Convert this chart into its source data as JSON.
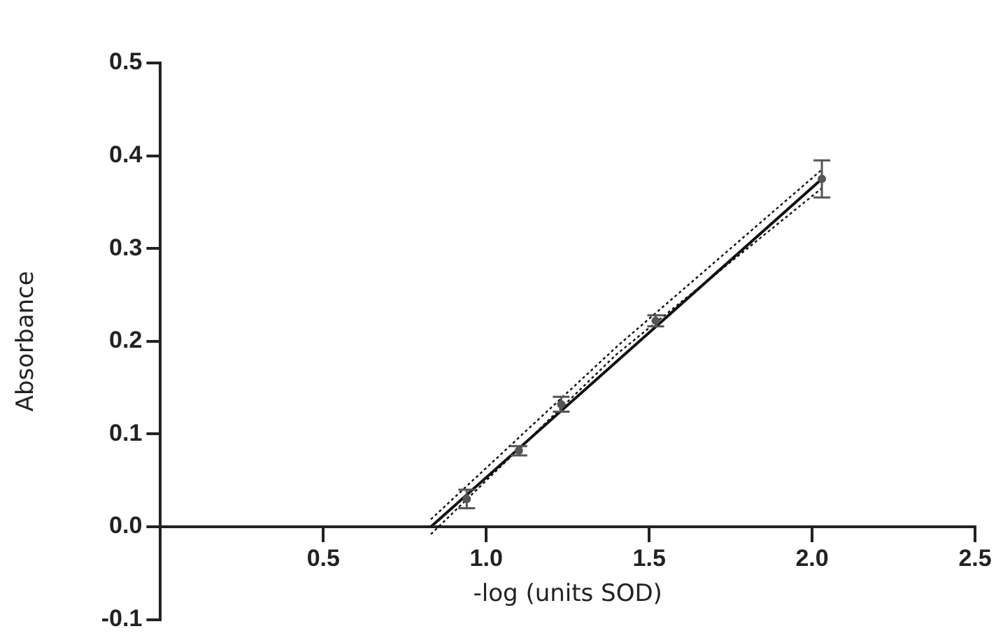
{
  "chart_data": {
    "type": "scatter",
    "xlabel": "-log (units SOD)",
    "ylabel": "Absorbance",
    "xlim": [
      0,
      2.5
    ],
    "xticks": [
      0.5,
      {
        "value": 1,
        "label": "1.0"
      },
      1.5,
      {
        "value": 2,
        "label": "2.0"
      },
      2.5
    ],
    "ylim": [
      -0.1,
      0.5
    ],
    "yticks": [
      -0.1,
      {
        "value": 0,
        "label": "0.0"
      },
      0.1,
      0.2,
      0.3,
      0.4,
      0.5
    ],
    "grid": false,
    "legend": false,
    "series": [
      {
        "color": "#555555",
        "marker": "circle",
        "x": [
          0.94,
          1.1,
          1.23,
          1.52,
          2.03
        ],
        "values": [
          0.03,
          0.082,
          0.132,
          0.222,
          0.375
        ],
        "errors": [
          0.01,
          0.005,
          0.008,
          0.006,
          0.02
        ]
      },
      {
        "type": "line",
        "color": "#111111",
        "line_style": "solid",
        "x": [
          0.83,
          2.03
        ],
        "values": [
          0,
          0.375
        ]
      },
      {
        "type": "line",
        "color": "#111111",
        "line_style": "dotted",
        "x": [
          0.83,
          1.4,
          2.03
        ],
        "values": [
          -0.008,
          0.186,
          0.365
        ]
      },
      {
        "type": "line",
        "color": "#111111",
        "line_style": "dotted",
        "x": [
          0.83,
          1.4,
          2.03
        ],
        "values": [
          0.008,
          0.194,
          0.385
        ]
      }
    ]
  }
}
